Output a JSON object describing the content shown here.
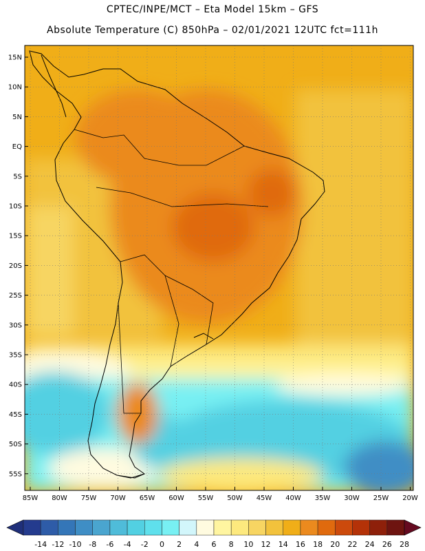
{
  "title_line1": "CPTEC/INPE/MCT –  Eta Model 15km – GFS",
  "title_line2": "Absolute Temperature (C) 850hPa – 02/01/2021 12UTC fct=111h",
  "lat_labels": [
    "15N",
    "10N",
    "5N",
    "EQ",
    "5S",
    "10S",
    "15S",
    "20S",
    "25S",
    "30S",
    "35S",
    "40S",
    "45S",
    "50S",
    "55S"
  ],
  "lon_labels": [
    "85W",
    "80W",
    "75W",
    "70W",
    "65W",
    "60W",
    "55W",
    "50W",
    "45W",
    "40W",
    "35W",
    "30W",
    "25W",
    "20W"
  ],
  "colorbar": {
    "ticks": [
      "-14",
      "-12",
      "-10",
      "-8",
      "-6",
      "-4",
      "-2",
      "0",
      "2",
      "4",
      "6",
      "8",
      "10",
      "12",
      "14",
      "16",
      "18",
      "20",
      "22",
      "24",
      "26",
      "28"
    ],
    "colors": [
      "#243b8e",
      "#2e5ca8",
      "#3476b8",
      "#3f8ec5",
      "#4aa5cf",
      "#4fbcd9",
      "#52d0e2",
      "#5fe0ec",
      "#78f0f3",
      "#d2f6fb",
      "#fffbe0",
      "#fff5a0",
      "#fde97e",
      "#f7d562",
      "#f2c23c",
      "#f0ae18",
      "#eb8a1e",
      "#e06a0e",
      "#cc4a0c",
      "#b43208",
      "#8e200a",
      "#6e1410"
    ],
    "low_color": "#1f2f7a",
    "high_color": "#650a20"
  }
}
